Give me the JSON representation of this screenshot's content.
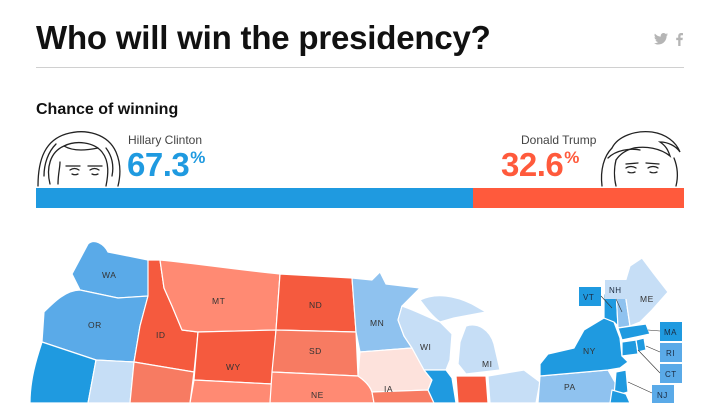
{
  "header": {
    "title": "Who will win the presidency?"
  },
  "share": {
    "icons": [
      "twitter-icon",
      "facebook-icon"
    ]
  },
  "chances": {
    "title": "Chance of winning",
    "clinton": {
      "name": "Hillary Clinton",
      "pct": "67.3",
      "value": 67.3,
      "color": "#1f9ae0"
    },
    "trump": {
      "name": "Donald Trump",
      "pct": "32.6",
      "value": 32.6,
      "color": "#ff5a3c"
    }
  },
  "map": {
    "states": {
      "WA": "WA",
      "OR": "OR",
      "ID": "ID",
      "MT": "MT",
      "WY": "WY",
      "ND": "ND",
      "SD": "SD",
      "NE": "NE",
      "MN": "MN",
      "WI": "WI",
      "MI": "MI",
      "IA": "IA",
      "NY": "NY",
      "PA": "PA"
    },
    "boxes": {
      "VT": "VT",
      "NH": "NH",
      "ME": "ME",
      "MA": "MA",
      "RI": "RI",
      "CT": "CT",
      "NJ": "NJ"
    },
    "colors": {
      "solid_dem": "#1f9ae0",
      "likely_dem": "#5aaae8",
      "lean_dem": "#8fc2ef",
      "tilt_dem": "#c6def6",
      "tilt_rep": "#fde2dc",
      "lean_rep": "#ff8a73",
      "solid_rep": "#f55a3e",
      "likely_rep": "#f77b62"
    }
  }
}
